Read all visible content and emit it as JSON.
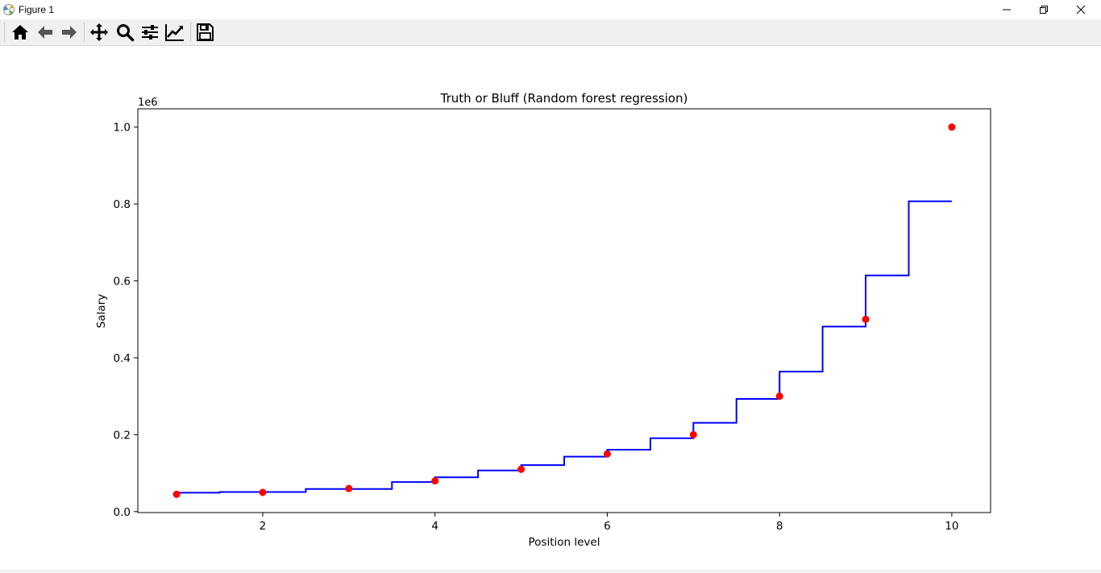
{
  "window": {
    "title": "Figure 1"
  },
  "toolbar": {
    "buttons": [
      {
        "name": "home-icon"
      },
      {
        "name": "back-arrow-icon"
      },
      {
        "name": "forward-arrow-icon"
      },
      {
        "name": "pan-move-icon"
      },
      {
        "name": "zoom-magnifier-icon"
      },
      {
        "name": "configure-subplots-icon"
      },
      {
        "name": "edit-axis-icon"
      },
      {
        "name": "save-floppy-icon"
      }
    ]
  },
  "colors": {
    "scatter": "#ff0000",
    "line": "#0000ff",
    "axes": "#000000"
  },
  "chart_data": {
    "type": "scatter",
    "title": "Truth or Bluff (Random forest regression)",
    "xlabel": "Position level",
    "ylabel": "Salary",
    "y_offset_text": "1e6",
    "xlim": [
      0.55,
      10.45
    ],
    "ylim": [
      -0.0025,
      1.0475
    ],
    "x_ticks": [
      2,
      4,
      6,
      8,
      10
    ],
    "x_tick_labels": [
      "2",
      "4",
      "6",
      "8",
      "10"
    ],
    "y_ticks": [
      0.0,
      0.2,
      0.4,
      0.6,
      0.8,
      1.0
    ],
    "y_tick_labels": [
      "0.0",
      "0.2",
      "0.4",
      "0.6",
      "0.8",
      "1.0"
    ],
    "grid": false,
    "series": [
      {
        "kind": "scatter",
        "color": "#ff0000",
        "x": [
          1,
          2,
          3,
          4,
          5,
          6,
          7,
          8,
          9,
          10
        ],
        "y": [
          0.045,
          0.05,
          0.06,
          0.08,
          0.11,
          0.15,
          0.2,
          0.3,
          0.5,
          1.0
        ]
      },
      {
        "kind": "step-line",
        "color": "#0000ff",
        "x": [
          1.0,
          1.5,
          2.5,
          3.5,
          4.0,
          4.5,
          5.0,
          5.5,
          6.0,
          6.5,
          7.0,
          7.5,
          8.0,
          8.5,
          9.0,
          9.5,
          10.0
        ],
        "y": [
          0.049,
          0.051,
          0.059,
          0.077,
          0.089,
          0.107,
          0.121,
          0.143,
          0.161,
          0.191,
          0.231,
          0.293,
          0.364,
          0.481,
          0.614,
          0.807,
          0.807
        ]
      }
    ]
  }
}
